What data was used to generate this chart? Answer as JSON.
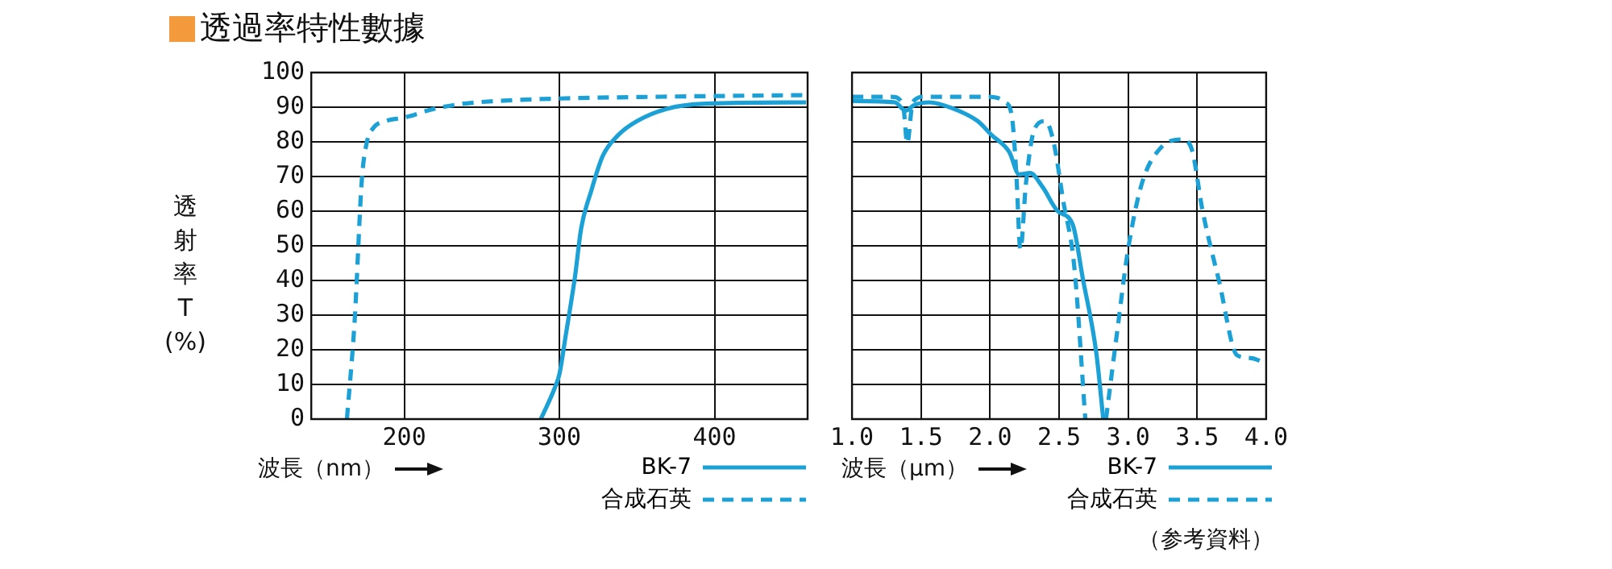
{
  "chart_data": [
    {
      "type": "line",
      "title": "透過率特性數據",
      "ylabel": "透射率T(%)",
      "xlabel": "波長（nm）",
      "xlim": [
        140,
        460
      ],
      "xticks": [
        200,
        300,
        400
      ],
      "ylim": [
        0,
        100
      ],
      "yticks": [
        0,
        10,
        20,
        30,
        40,
        50,
        60,
        70,
        80,
        90,
        100
      ],
      "grid": true,
      "legend": "bottom right",
      "series": [
        {
          "name": "BK-7",
          "color": "#1ba1d6",
          "line_style": "solid",
          "x": [
            288,
            297,
            300,
            304,
            310,
            314,
            320.6,
            328,
            338,
            350,
            369,
            394,
            459
          ],
          "values": [
            0,
            9,
            13,
            24,
            41,
            55,
            66,
            76,
            82,
            86,
            89.5,
            91,
            91.4
          ]
        },
        {
          "name": "合成石英",
          "color": "#1ba1d6",
          "line_style": "dashed",
          "x": [
            163,
            168,
            172.6,
            175.7,
            180,
            188,
            200,
            219,
            238,
            269,
            300,
            362,
            459
          ],
          "values": [
            0,
            28.6,
            69,
            79.6,
            84,
            86,
            87,
            89.5,
            91,
            92,
            92.5,
            93,
            93.5
          ]
        }
      ]
    },
    {
      "type": "line",
      "xlabel": "波長（μm）",
      "xlim": [
        1.0,
        4.0
      ],
      "xticks": [
        {
          "value": 1,
          "label": "1.0"
        },
        1.5,
        {
          "value": 2,
          "label": "2.0"
        },
        2.5,
        {
          "value": 3,
          "label": "3.0"
        },
        3.5,
        {
          "value": 4,
          "label": "4.0"
        }
      ],
      "ylim": [
        0,
        100
      ],
      "yticks": [
        0,
        10,
        20,
        30,
        40,
        50,
        60,
        70,
        80,
        90,
        100
      ],
      "tick_labels": "x",
      "grid": true,
      "legend": "bottom right",
      "annotations": [
        "（参考資料）"
      ],
      "series": [
        {
          "name": "BK-7",
          "color": "#1ba1d6",
          "line_style": "solid",
          "x": [
            1.0,
            1.31,
            1.39,
            1.45,
            1.56,
            1.72,
            1.91,
            2.01,
            2.14,
            2.21,
            2.29,
            2.38,
            2.49,
            2.6,
            2.67,
            2.77,
            2.82
          ],
          "values": [
            91.8,
            91.4,
            89,
            90.6,
            91.4,
            89.8,
            86,
            82,
            77,
            70.6,
            71,
            67,
            60,
            56,
            41,
            19,
            0
          ]
        },
        {
          "name": "合成石英",
          "color": "#1ba1d6",
          "line_style": "dashed",
          "x": [
            1.0,
            1.29,
            1.37,
            1.4,
            1.44,
            1.52,
            1.99,
            2.11,
            2.16,
            2.19,
            2.22,
            2.26,
            2.32,
            2.4,
            2.46,
            2.53,
            2.61,
            2.69,
            2.76,
            2.84,
            2.92,
            3.0,
            3.1,
            3.23,
            3.39,
            3.46,
            3.54,
            3.66,
            3.79,
            3.89,
            4.0
          ],
          "values": [
            93,
            93,
            90.6,
            79.6,
            91.4,
            93,
            93,
            91.4,
            86.7,
            71,
            49,
            68,
            83.5,
            86,
            80,
            63,
            44,
            0,
            null,
            0,
            25,
            49,
            68,
            78,
            80.7,
            78,
            60,
            39.6,
            18.4,
            17.6,
            16
          ]
        }
      ]
    }
  ]
}
